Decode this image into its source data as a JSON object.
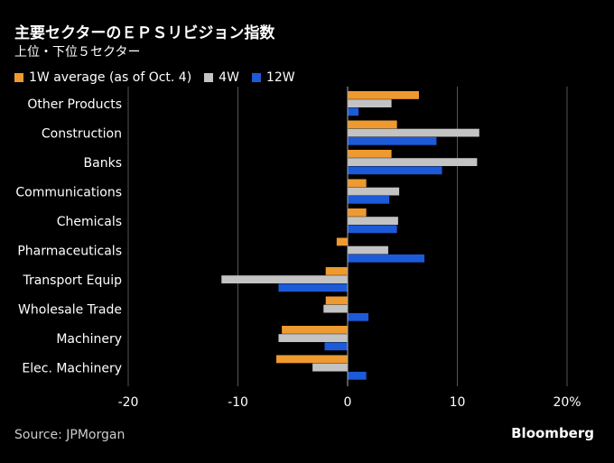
{
  "header": {
    "title": "主要セクターのＥＰＳリビジョン指数",
    "subtitle": "上位・下位５セクター"
  },
  "colors": {
    "w1": "#ee9a30",
    "w4": "#c3c3c3",
    "w12": "#1d5ad8",
    "grid": "#555555",
    "zero": "#aaaaaa",
    "text": "#ffffff"
  },
  "chart_data": {
    "type": "bar",
    "orientation": "horizontal",
    "categories": [
      "Other Products",
      "Construction",
      "Banks",
      "Communications",
      "Chemicals",
      "Pharmaceuticals",
      "Transport Equip",
      "Wholesale Trade",
      "Machinery",
      "Elec. Machinery"
    ],
    "series": [
      {
        "name": "1W average (as of Oct. 4)",
        "color_key": "w1",
        "values": [
          6.5,
          4.5,
          4.0,
          1.7,
          1.7,
          -1.0,
          -2.0,
          -2.0,
          -6.0,
          -6.5
        ]
      },
      {
        "name": "4W",
        "color_key": "w4",
        "values": [
          4.0,
          12.0,
          11.8,
          4.7,
          4.6,
          3.7,
          -11.5,
          -2.2,
          -6.3,
          -3.2
        ]
      },
      {
        "name": "12W",
        "color_key": "w12",
        "values": [
          1.0,
          8.1,
          8.6,
          3.8,
          4.5,
          7.0,
          -6.3,
          1.9,
          -2.1,
          1.7
        ]
      }
    ],
    "xlim": [
      -20,
      20
    ],
    "xticks": [
      "-20",
      "-10",
      "0",
      "10",
      "20%"
    ],
    "grid": "vertical"
  },
  "footer": {
    "source": "Source: JPMorgan",
    "brand": "Bloomberg"
  }
}
